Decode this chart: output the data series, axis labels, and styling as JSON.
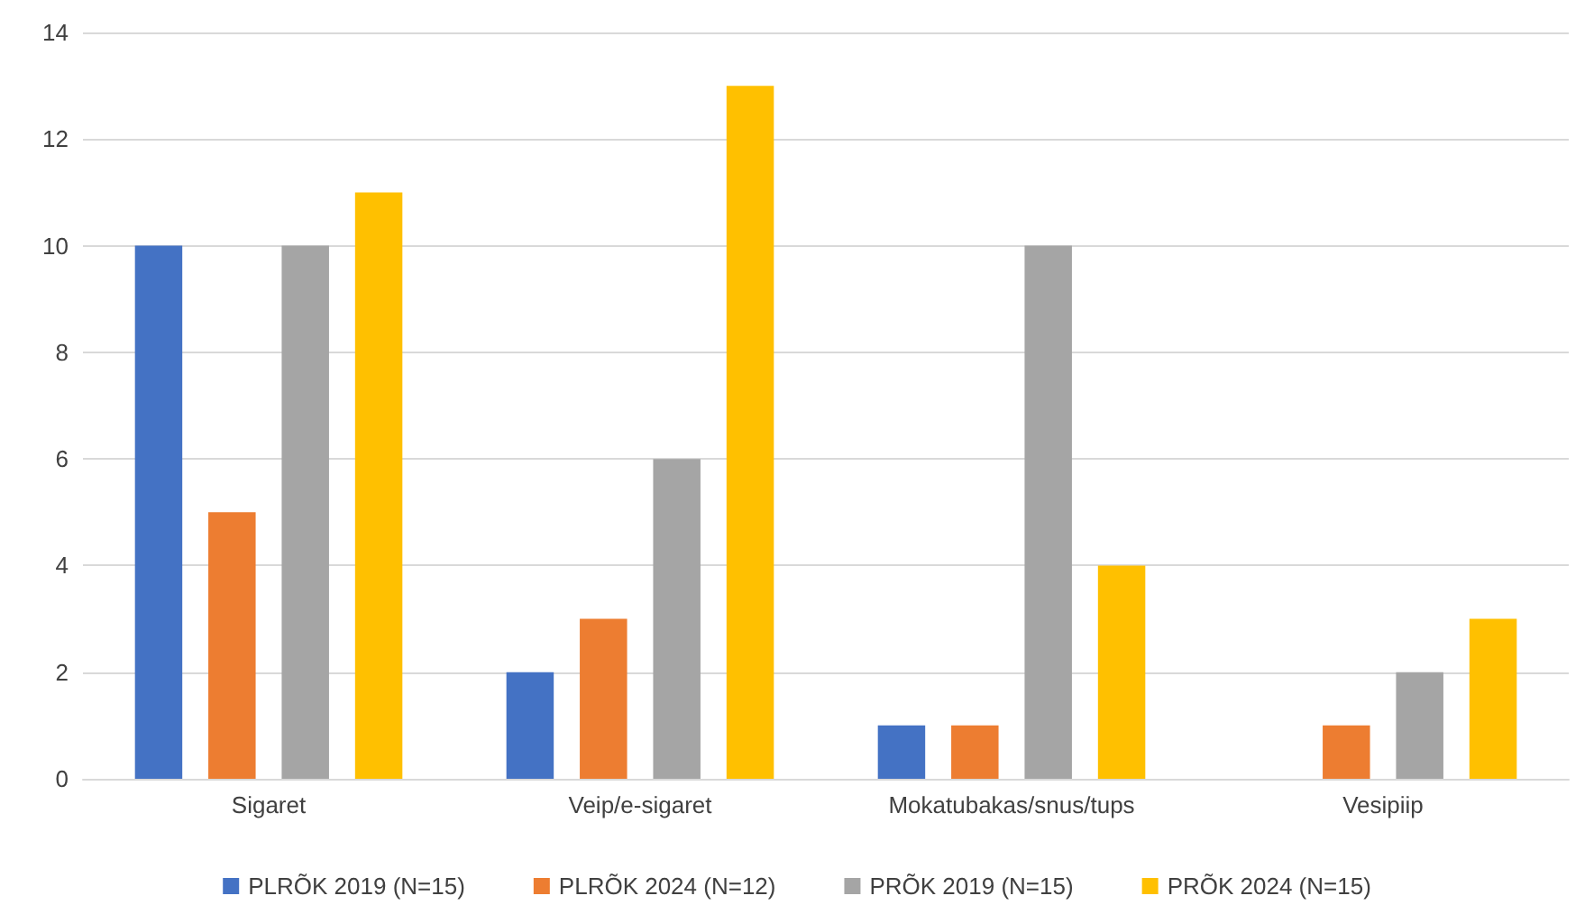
{
  "chart_data": {
    "type": "bar",
    "categories": [
      "Sigaret",
      "Veip/e-sigaret",
      "Mokatubakas/snus/tups",
      "Vesipiip"
    ],
    "series": [
      {
        "name": "PLRÕK 2019 (N=15)",
        "color": "#4472c4",
        "values": [
          10,
          2,
          1,
          0
        ]
      },
      {
        "name": "PLRÕK 2024 (N=12)",
        "color": "#ed7d31",
        "values": [
          5,
          3,
          1,
          1
        ]
      },
      {
        "name": "PRÕK 2019 (N=15)",
        "color": "#a5a5a5",
        "values": [
          10,
          6,
          10,
          2
        ]
      },
      {
        "name": "PRÕK 2024 (N=15)",
        "color": "#ffc000",
        "values": [
          11,
          13,
          4,
          3
        ]
      }
    ],
    "ylim": [
      0,
      14
    ],
    "yticks": [
      0,
      2,
      4,
      6,
      8,
      10,
      12,
      14
    ],
    "grid": "y",
    "legend": "bottom"
  }
}
